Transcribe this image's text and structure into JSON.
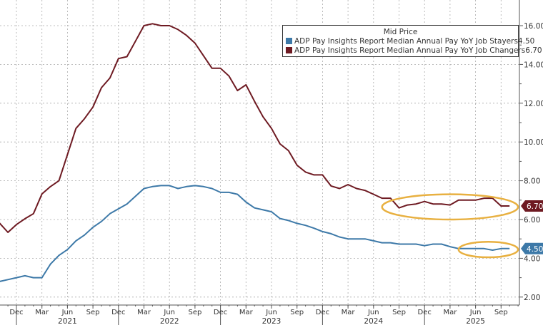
{
  "chart_data": {
    "type": "line",
    "title": "",
    "legend_title": "Mid Price",
    "legend_position": "top-right",
    "grid": true,
    "ylim": [
      1.5,
      16.8
    ],
    "y_ticks": [
      "2.00",
      "4.00",
      "6.00",
      "8.00",
      "10.00",
      "12.00",
      "14.00",
      "16.00"
    ],
    "y_axis_side": "right",
    "x_start": "2020-10",
    "x_tick_labels": [
      "Dec",
      "Mar",
      "Jun",
      "Sep",
      "Dec",
      "Mar",
      "Jun",
      "Sep",
      "Dec",
      "Mar",
      "Jun",
      "Sep",
      "Dec",
      "Mar",
      "Jun",
      "Sep",
      "Dec",
      "Mar",
      "Jun",
      "Sep"
    ],
    "x_tick_months": [
      "2020-12",
      "2021-03",
      "2021-06",
      "2021-09",
      "2021-12",
      "2022-03",
      "2022-06",
      "2022-09",
      "2022-12",
      "2023-03",
      "2023-06",
      "2023-09",
      "2023-12",
      "2024-03",
      "2024-06",
      "2024-09",
      "2024-12",
      "2025-03",
      "2025-06",
      "2025-09"
    ],
    "year_labels": [
      {
        "label": "2021",
        "month": "2021-06"
      },
      {
        "label": "2022",
        "month": "2022-06"
      },
      {
        "label": "2023",
        "month": "2023-06"
      },
      {
        "label": "2024",
        "month": "2024-06"
      },
      {
        "label": "2025",
        "month": "2025-06"
      }
    ],
    "series": [
      {
        "name": "ADP Pay Insights Report Median Annual Pay YoY Job Stayers",
        "last_value": "4.50",
        "color": "#3d79a8",
        "values": [
          2.8,
          2.9,
          3.0,
          3.1,
          3.0,
          3.0,
          3.7,
          4.15,
          4.45,
          4.9,
          5.2,
          5.6,
          5.9,
          6.3,
          6.55,
          6.8,
          7.2,
          7.6,
          7.7,
          7.75,
          7.75,
          7.6,
          7.7,
          7.75,
          7.7,
          7.6,
          7.4,
          7.4,
          7.3,
          6.9,
          6.6,
          6.5,
          6.4,
          6.05,
          5.95,
          5.8,
          5.7,
          5.55,
          5.38,
          5.27,
          5.1,
          5.0,
          5.0,
          5.0,
          4.9,
          4.8,
          4.8,
          4.73,
          4.73,
          4.73,
          4.65,
          4.73,
          4.73,
          4.6,
          4.5,
          4.5,
          4.5,
          4.5,
          4.42,
          4.5,
          4.5
        ]
      },
      {
        "name": "ADP Pay Insights Report Median Annual Pay YoY Job Changers",
        "last_value": "6.70",
        "color": "#6e1a22",
        "values": [
          5.82,
          5.34,
          5.74,
          6.04,
          6.3,
          7.32,
          7.7,
          8.0,
          9.35,
          10.7,
          11.2,
          11.8,
          12.8,
          13.3,
          14.3,
          14.4,
          15.2,
          16.0,
          16.1,
          16.0,
          16.0,
          15.8,
          15.5,
          15.1,
          14.45,
          13.8,
          13.8,
          13.4,
          12.65,
          12.95,
          12.1,
          11.3,
          10.7,
          9.9,
          9.55,
          8.8,
          8.45,
          8.3,
          8.3,
          7.73,
          7.6,
          7.8,
          7.6,
          7.5,
          7.3,
          7.1,
          7.1,
          6.6,
          6.75,
          6.8,
          6.93,
          6.8,
          6.8,
          6.75,
          7.0,
          7.0,
          7.0,
          7.1,
          7.1,
          6.7,
          6.7
        ]
      }
    ],
    "annotations": [
      {
        "type": "ellipse",
        "color": "#e8b040",
        "from": "2024-07",
        "to": "2025-11",
        "y_range": [
          6.0,
          7.3
        ]
      },
      {
        "type": "ellipse",
        "color": "#e8b040",
        "from": "2025-04",
        "to": "2025-11",
        "y_range": [
          4.05,
          4.85
        ]
      }
    ]
  }
}
